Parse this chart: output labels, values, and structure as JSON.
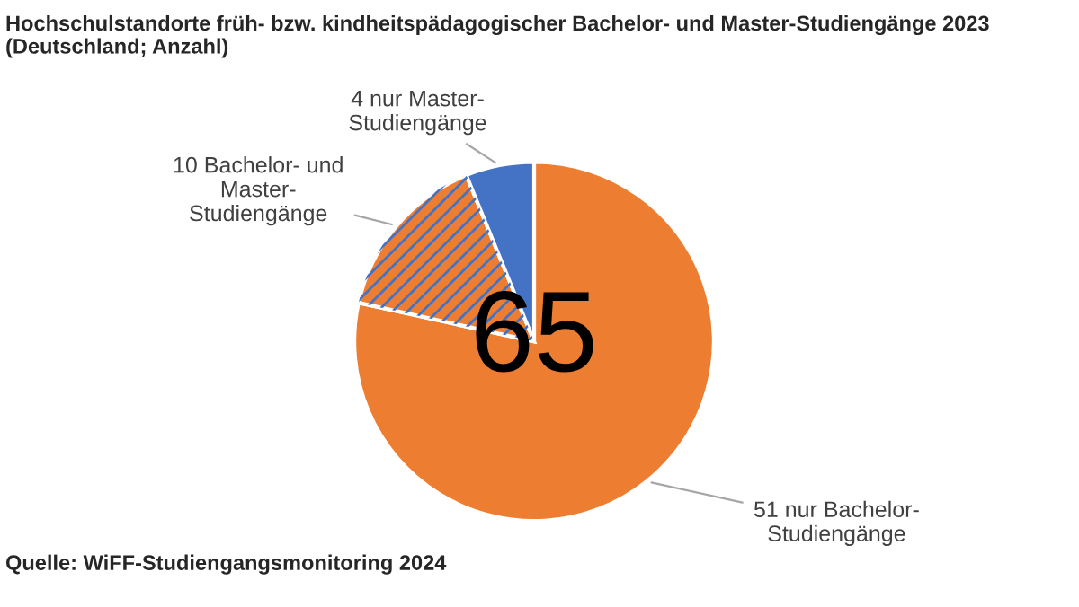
{
  "chart_data": {
    "type": "pie",
    "title": "Hochschulstandorte früh- bzw. kindheitspädagogischer Bachelor- und Master-Studiengänge 2023\n(Deutschland; Anzahl)",
    "categories": [
      "51 nur Bachelor-\nStudiengänge",
      "10 Bachelor- und\nMaster-\nStudiengänge",
      "4 nur Master-\nStudiengänge"
    ],
    "values": [
      51,
      10,
      4
    ],
    "colors": [
      "#ed7d31",
      "#ed7d31",
      "#4472c4"
    ],
    "annotations": [
      "65",
      "Quelle: WiFF-Studiengangsmonitoring 2024"
    ],
    "legend": false
  }
}
